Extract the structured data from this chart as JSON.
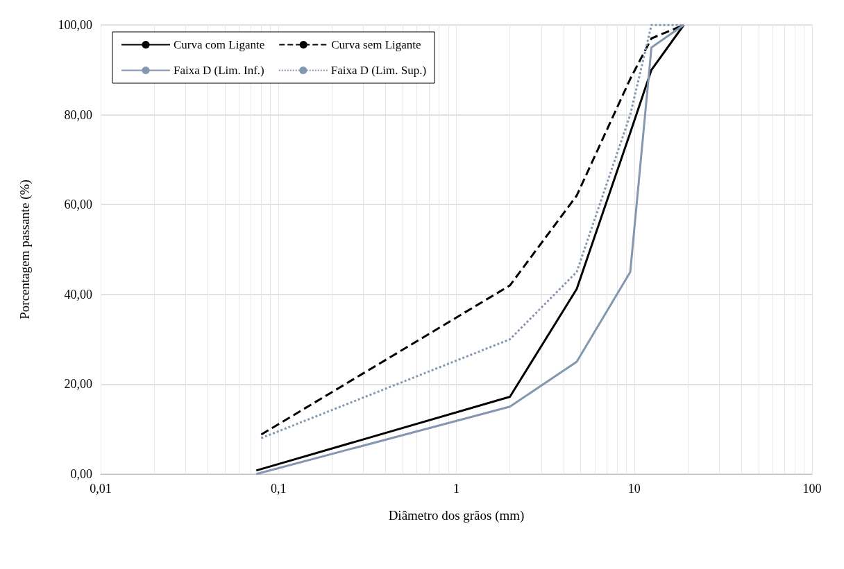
{
  "chart_data": {
    "type": "line",
    "xlabel": "Diâmetro dos grãos (mm)",
    "ylabel": "Porcentagem passante (%)",
    "log": "x",
    "grid": true,
    "legend": "top left",
    "marker": "none",
    "xlim": [
      0.01,
      100
    ],
    "xticks": [
      {
        "value": 0.01,
        "label": "0,01"
      },
      {
        "value": 0.1,
        "label": "0,1"
      },
      1,
      10,
      100
    ],
    "ylim": [
      0,
      100
    ],
    "yticks": [
      {
        "value": 0,
        "label": "0,00"
      },
      {
        "value": 20,
        "label": "20,00"
      },
      {
        "value": 40,
        "label": "40,00"
      },
      {
        "value": 60,
        "label": "60,00"
      },
      {
        "value": 80,
        "label": "80,00"
      },
      {
        "value": 100,
        "label": "100,00"
      }
    ],
    "series": [
      {
        "name": "Curva com Ligante",
        "color": "#000000",
        "line_style": "solid",
        "x": [
          0.075,
          2,
          4.75,
          9.5,
          12.5,
          19
        ],
        "values": [
          0.8,
          17.2,
          41.2,
          76,
          90,
          100
        ]
      },
      {
        "name": "Curva sem Ligante",
        "color": "#000000",
        "line_style": "dashed",
        "x": [
          0.08,
          2,
          4.75,
          9.5,
          12.5,
          19
        ],
        "values": [
          8.8,
          42,
          62,
          88,
          97,
          100
        ]
      },
      {
        "name": "Faixa D (Lim. Inf.)",
        "color": "#8497b0",
        "line_style": "solid",
        "x": [
          0.075,
          2,
          4.75,
          9.5,
          12.5,
          19
        ],
        "values": [
          0,
          15,
          25,
          45,
          95,
          100
        ]
      },
      {
        "name": "Faixa D (Lim. Sup.)",
        "color": "#8497b0",
        "line_style": "dotted",
        "x": [
          0.08,
          2,
          4.75,
          9.5,
          12.5,
          19
        ],
        "values": [
          8,
          30,
          45,
          80,
          100,
          100
        ]
      }
    ]
  }
}
